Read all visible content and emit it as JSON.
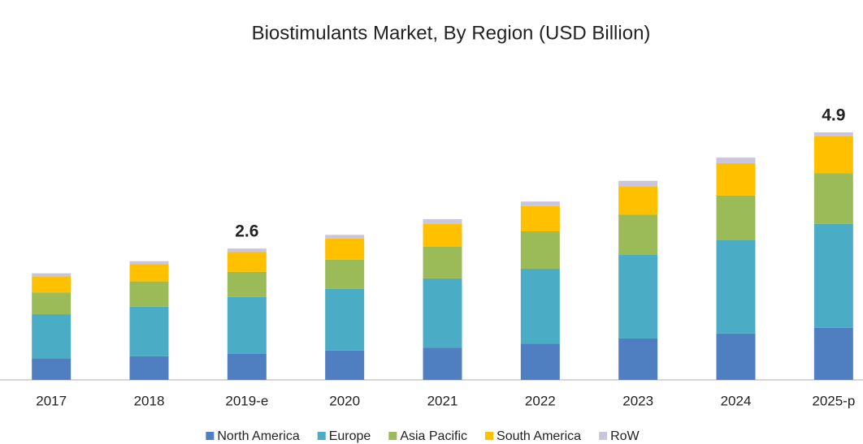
{
  "chart_data": {
    "type": "stacked_bar",
    "title": "Biostimulants Market, By Region (USD Billion)",
    "categories": [
      "2017",
      "2018",
      "2019-e",
      "2020",
      "2021",
      "2022",
      "2023",
      "2024",
      "2025-p"
    ],
    "series": [
      {
        "name": "North America",
        "color": "#4f7fc0",
        "values": [
          0.43,
          0.47,
          0.52,
          0.58,
          0.64,
          0.72,
          0.82,
          0.92,
          1.03
        ]
      },
      {
        "name": "Europe",
        "color": "#4bacc6",
        "values": [
          0.87,
          0.98,
          1.12,
          1.22,
          1.37,
          1.48,
          1.66,
          1.85,
          2.06
        ]
      },
      {
        "name": "Asia Pacific",
        "color": "#9bbb59",
        "values": [
          0.43,
          0.5,
          0.5,
          0.58,
          0.63,
          0.74,
          0.79,
          0.88,
          1.0
        ]
      },
      {
        "name": "South America",
        "color": "#ffc000",
        "values": [
          0.32,
          0.34,
          0.39,
          0.42,
          0.45,
          0.5,
          0.56,
          0.64,
          0.73
        ]
      },
      {
        "name": "RoW",
        "color": "#c9c6dc",
        "values": [
          0.06,
          0.06,
          0.07,
          0.07,
          0.09,
          0.09,
          0.11,
          0.11,
          0.08
        ]
      }
    ],
    "total_labels": [
      null,
      null,
      "2.6",
      null,
      null,
      null,
      null,
      null,
      "4.9"
    ]
  }
}
